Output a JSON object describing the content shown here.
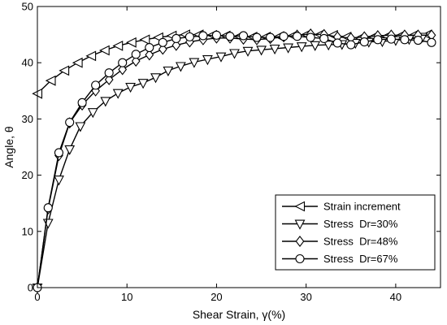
{
  "chart_data": {
    "type": "line",
    "xlabel": "Shear Strain, γ(%)",
    "ylabel": "Angle, θ",
    "xlim": [
      0,
      45
    ],
    "ylim": [
      0,
      50
    ],
    "xticks": [
      0,
      10,
      20,
      30,
      40
    ],
    "yticks": [
      0,
      10,
      20,
      30,
      40,
      50
    ],
    "grid": false,
    "legend_position": "bottom-right",
    "series": [
      {
        "name": "Strain increment",
        "marker": "triangle-left",
        "x": [
          0,
          1.5,
          3,
          4.5,
          6,
          7.5,
          9,
          10.5,
          12,
          13.5,
          15,
          16.5,
          18,
          19.5,
          21,
          22.5,
          24,
          25.5,
          27,
          28.5,
          30,
          31.5,
          33,
          34.5,
          36,
          37.5,
          39,
          40.5,
          42,
          43.5
        ],
        "y": [
          34.5,
          36.8,
          38.6,
          40.0,
          41.2,
          42.2,
          43.0,
          43.6,
          44.1,
          44.5,
          44.8,
          45.0,
          45.0,
          44.9,
          44.8,
          44.7,
          44.6,
          44.6,
          44.7,
          44.8,
          45.0,
          45.0,
          44.9,
          44.6,
          44.4,
          44.6,
          44.7,
          44.8,
          44.9,
          45.0
        ]
      },
      {
        "name": "Stress  Dr=30%",
        "marker": "triangle-down",
        "x": [
          0,
          1.2,
          2.4,
          3.6,
          4.8,
          6.2,
          7.6,
          9,
          10.4,
          11.8,
          13.2,
          14.6,
          16,
          17.5,
          19,
          20.5,
          22,
          23.5,
          25,
          26.5,
          28,
          29.5,
          31,
          32.5,
          34,
          35.5,
          37,
          38.5,
          40,
          41.5,
          43
        ],
        "y": [
          0,
          11.5,
          19.2,
          24.6,
          28.7,
          31.2,
          33.2,
          34.6,
          35.7,
          36.4,
          37.4,
          38.6,
          39.4,
          40.1,
          40.6,
          41.1,
          41.7,
          42.1,
          42.3,
          42.5,
          42.7,
          42.9,
          43.1,
          43.2,
          43.3,
          43.5,
          43.7,
          43.8,
          44.0,
          44.2,
          44.6
        ]
      },
      {
        "name": "Stress  Dr=48%",
        "marker": "diamond",
        "x": [
          0,
          1.2,
          2.4,
          3.6,
          5,
          6.5,
          8,
          9.5,
          11,
          12.5,
          14,
          15.5,
          17,
          18.5,
          20,
          21.5,
          23,
          24.5,
          26,
          27.5,
          29,
          30.5,
          32,
          33.5,
          35,
          36.5,
          38,
          39.5,
          41,
          42.5,
          44
        ],
        "y": [
          0,
          14.0,
          23.5,
          29.3,
          32.5,
          35.0,
          37.0,
          38.8,
          40.3,
          41.4,
          42.4,
          43.1,
          43.7,
          44.1,
          44.4,
          44.4,
          44.2,
          44.1,
          44.3,
          44.6,
          44.9,
          45.1,
          45.0,
          44.6,
          44.4,
          44.6,
          44.8,
          44.9,
          44.9,
          44.9,
          44.9
        ]
      },
      {
        "name": "Stress  Dr=67%",
        "marker": "circle",
        "x": [
          0,
          1.2,
          2.4,
          3.6,
          5,
          6.5,
          8,
          9.5,
          11,
          12.5,
          14,
          15.5,
          17,
          18.5,
          20,
          21.5,
          23,
          24.5,
          26,
          27.5,
          29,
          30.5,
          32,
          33.5,
          35,
          36.5,
          38,
          39.5,
          41,
          42.5,
          44
        ],
        "y": [
          0,
          14.2,
          24.0,
          29.4,
          32.9,
          36.0,
          38.2,
          40.0,
          41.5,
          42.7,
          43.6,
          44.3,
          44.6,
          44.8,
          44.9,
          44.7,
          44.8,
          44.5,
          44.5,
          44.7,
          44.7,
          44.5,
          44.3,
          43.5,
          43.2,
          43.7,
          44.1,
          44.2,
          44.1,
          44.0,
          43.6
        ]
      }
    ]
  }
}
